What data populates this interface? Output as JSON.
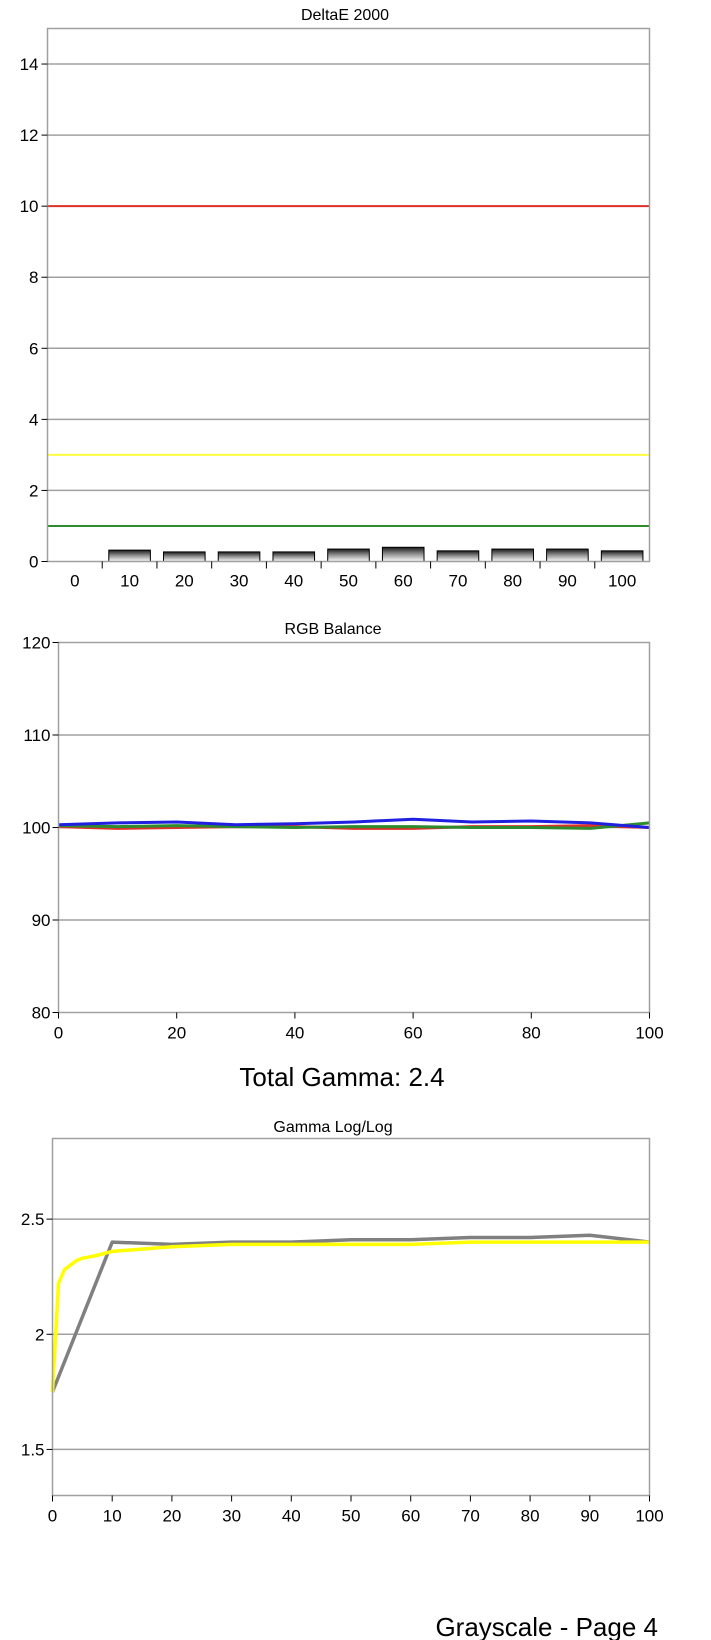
{
  "chart_data": [
    {
      "type": "bar",
      "title": "DeltaE 2000",
      "categories": [
        "0",
        "10",
        "20",
        "30",
        "40",
        "50",
        "60",
        "70",
        "80",
        "90",
        "100"
      ],
      "values": [
        0,
        0.32,
        0.27,
        0.27,
        0.27,
        0.35,
        0.4,
        0.3,
        0.35,
        0.35,
        0.3
      ],
      "ylim": [
        0,
        15
      ],
      "yticks": [
        0,
        2,
        4,
        6,
        8,
        10,
        12,
        14
      ],
      "threshold_lines": [
        {
          "value": 10,
          "color": "#e0302a"
        },
        {
          "value": 3,
          "color": "#ffff40"
        },
        {
          "value": 1,
          "color": "#2e8b2e"
        }
      ],
      "grid": true
    },
    {
      "type": "line",
      "title": "RGB Balance",
      "x": [
        0,
        10,
        20,
        30,
        40,
        50,
        60,
        70,
        80,
        90,
        100
      ],
      "series": [
        {
          "color": "#e0302a",
          "values": [
            100.1,
            99.9,
            100.0,
            100.1,
            100.1,
            99.9,
            99.9,
            100.1,
            100.1,
            100.2,
            100.0
          ]
        },
        {
          "color": "#2e8b2e",
          "values": [
            100.2,
            100.1,
            100.2,
            100.1,
            100.0,
            100.1,
            100.1,
            100.0,
            100.0,
            99.9,
            100.5
          ]
        },
        {
          "color": "#2020e0",
          "values": [
            100.3,
            100.5,
            100.6,
            100.3,
            100.4,
            100.6,
            100.9,
            100.6,
            100.7,
            100.5,
            100.0
          ]
        }
      ],
      "xlim": [
        0,
        100
      ],
      "ylim": [
        80,
        120
      ],
      "xticks": [
        0,
        20,
        40,
        60,
        80,
        100
      ],
      "yticks": [
        80,
        90,
        100,
        110,
        120
      ],
      "grid": true
    },
    {
      "type": "line",
      "title": "Gamma Log/Log",
      "heading": "Total Gamma: 2.4",
      "x": [
        0,
        10,
        20,
        30,
        40,
        50,
        60,
        70,
        80,
        90,
        100
      ],
      "series": [
        {
          "color": "#808080",
          "values": [
            1.75,
            2.4,
            2.39,
            2.4,
            2.4,
            2.41,
            2.41,
            2.42,
            2.42,
            2.43,
            2.4
          ]
        },
        {
          "color": "#ffff00",
          "x": [
            0,
            1,
            2,
            3,
            4,
            5,
            7,
            10,
            15,
            20,
            30,
            40,
            50,
            60,
            70,
            80,
            90,
            100
          ],
          "values": [
            1.75,
            2.22,
            2.28,
            2.3,
            2.32,
            2.33,
            2.34,
            2.36,
            2.37,
            2.38,
            2.39,
            2.39,
            2.39,
            2.39,
            2.4,
            2.4,
            2.4,
            2.4
          ]
        }
      ],
      "xlim": [
        0,
        100
      ],
      "ylim": [
        1.3,
        2.85
      ],
      "xticks": [
        0,
        10,
        20,
        30,
        40,
        50,
        60,
        70,
        80,
        90,
        100
      ],
      "yticks": [
        1.5,
        2,
        2.5
      ],
      "ytick_labels": [
        "1.5",
        "2",
        "2.5"
      ],
      "grid": true
    }
  ],
  "footer": {
    "page_label": "Grayscale - Page 4"
  }
}
